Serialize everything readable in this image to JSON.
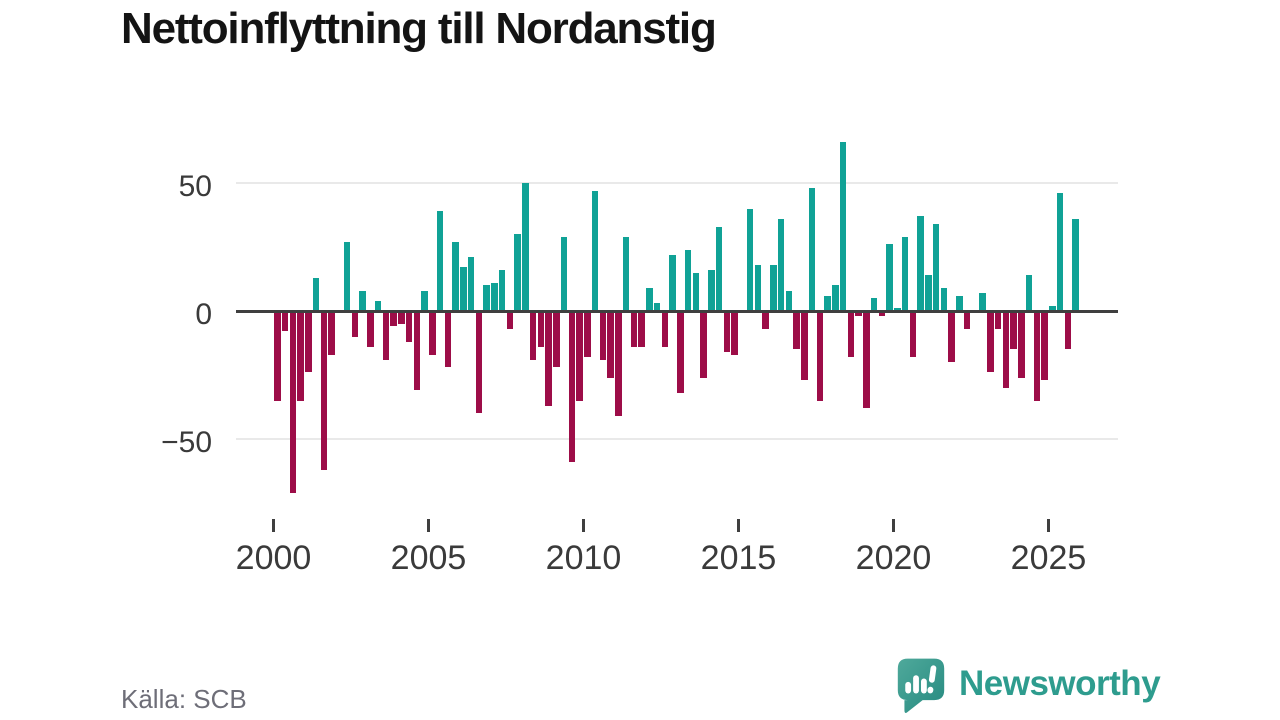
{
  "title": "Nettoinflyttning till Nordanstig",
  "source_label": "Källa: SCB",
  "logo": {
    "text": "Newsworthy",
    "icon": "newsworthy-bubble-chart-icon"
  },
  "colors": {
    "positive_bar": "#10a296",
    "negative_bar": "#9d0d48",
    "axis_line": "#3f3f3f",
    "gridline": "#e9e9e9",
    "tick_label": "#3a3a3a",
    "source_text": "#6e6e78",
    "logo_teal": "#2e9c8e"
  },
  "axis": {
    "y_ticks": [
      {
        "label": "50",
        "value": 50
      },
      {
        "label": "0",
        "value": 0
      },
      {
        "label": "−50",
        "value": -50
      }
    ],
    "x_ticks": [
      {
        "label": "2000",
        "year": 2000
      },
      {
        "label": "2005",
        "year": 2005
      },
      {
        "label": "2010",
        "year": 2010
      },
      {
        "label": "2015",
        "year": 2015
      },
      {
        "label": "2020",
        "year": 2020
      },
      {
        "label": "2025",
        "year": 2025
      }
    ]
  },
  "chart_data": {
    "type": "bar",
    "title": "Nettoinflyttning till Nordanstig",
    "xlabel": "",
    "ylabel": "",
    "frequency": "quarterly",
    "first_period": "2000-Q1",
    "last_period": "2025-Q4",
    "ylim": [
      -75,
      70
    ],
    "xlim_years": [
      1998.8,
      2027.2
    ],
    "grid": "horizontal gridlines at -50 and 50, dark zero axis",
    "legend": "none",
    "series_name": "Nettoinflyttning per kvartal",
    "zero_value_note": "quarters with value 0 render no bar",
    "values_by_year": {
      "2000": [
        -35,
        -8,
        -71,
        -35
      ],
      "2001": [
        -24,
        13,
        -62,
        -17
      ],
      "2002": [
        0,
        27,
        -10,
        8
      ],
      "2003": [
        -14,
        4,
        -19,
        -6
      ],
      "2004": [
        -5,
        -12,
        -31,
        8
      ],
      "2005": [
        -17,
        39,
        -22,
        27
      ],
      "2006": [
        17,
        21,
        -40,
        10
      ],
      "2007": [
        11,
        16,
        -7,
        30
      ],
      "2008": [
        50,
        -19,
        -14,
        -37
      ],
      "2009": [
        -22,
        29,
        -59,
        -35
      ],
      "2010": [
        -18,
        47,
        -19,
        -26
      ],
      "2011": [
        -41,
        29,
        -14,
        -14
      ],
      "2012": [
        9,
        3,
        -14,
        22
      ],
      "2013": [
        -32,
        24,
        15,
        -26
      ],
      "2014": [
        16,
        33,
        -16,
        -17
      ],
      "2015": [
        0,
        40,
        18,
        -7
      ],
      "2016": [
        18,
        36,
        8,
        -15
      ],
      "2017": [
        -27,
        48,
        -35,
        6
      ],
      "2018": [
        10,
        66,
        -18,
        -2
      ],
      "2019": [
        -38,
        5,
        -2,
        26
      ],
      "2020": [
        1,
        29,
        -18,
        37
      ],
      "2021": [
        14,
        34,
        9,
        -20
      ],
      "2022": [
        6,
        -7,
        0,
        7
      ],
      "2023": [
        -24,
        -7,
        -30,
        -15
      ],
      "2024": [
        -26,
        14,
        -35,
        -27
      ],
      "2025": [
        2,
        46,
        -15,
        36
      ]
    }
  }
}
